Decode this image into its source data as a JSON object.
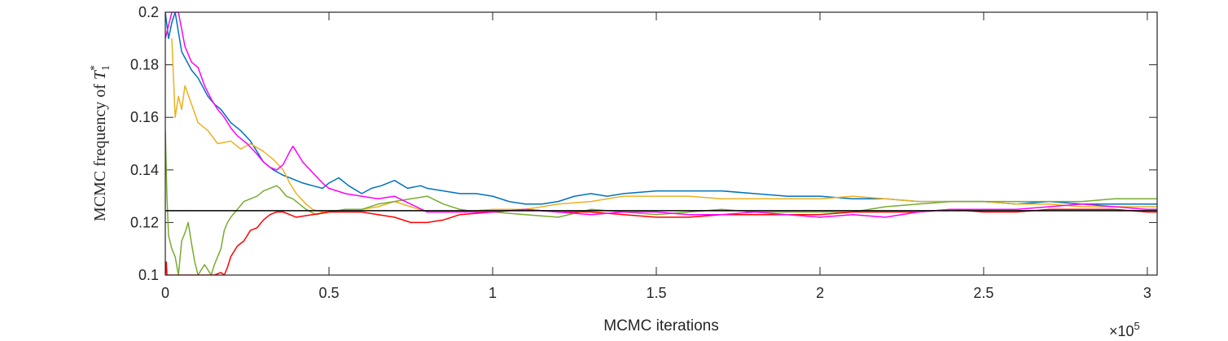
{
  "chart_data": {
    "type": "line",
    "xlabel": "MCMC iterations",
    "ylabel_prefix": "MCMC frequency of ",
    "ylabel_symbol": "T",
    "ylabel_sub": "1",
    "ylabel_sup": "*",
    "x_exponent_base": "×10",
    "x_exponent_power": "5",
    "xlim": [
      0,
      3.03
    ],
    "ylim": [
      0.1,
      0.2
    ],
    "x_ticks": [
      0,
      0.5,
      1,
      1.5,
      2,
      2.5,
      3
    ],
    "x_tick_labels": [
      "0",
      "0.5",
      "1",
      "1.5",
      "2",
      "2.5",
      "3"
    ],
    "y_ticks": [
      0.1,
      0.12,
      0.14,
      0.16,
      0.18,
      0.2
    ],
    "y_tick_labels": [
      "0.1",
      "0.12",
      "0.14",
      "0.16",
      "0.18",
      "0.2"
    ],
    "reference_line": {
      "y": 0.1245,
      "color": "#000000"
    },
    "series": [
      {
        "color": "#0072BD",
        "points": [
          [
            0,
            0.2
          ],
          [
            0.01,
            0.19
          ],
          [
            0.02,
            0.196
          ],
          [
            0.03,
            0.2
          ],
          [
            0.05,
            0.185
          ],
          [
            0.08,
            0.178
          ],
          [
            0.1,
            0.175
          ],
          [
            0.13,
            0.168
          ],
          [
            0.15,
            0.165
          ],
          [
            0.17,
            0.163
          ],
          [
            0.2,
            0.158
          ],
          [
            0.23,
            0.155
          ],
          [
            0.26,
            0.151
          ],
          [
            0.28,
            0.147
          ],
          [
            0.3,
            0.143
          ],
          [
            0.33,
            0.14
          ],
          [
            0.36,
            0.138
          ],
          [
            0.38,
            0.137
          ],
          [
            0.4,
            0.136
          ],
          [
            0.42,
            0.135
          ],
          [
            0.45,
            0.134
          ],
          [
            0.48,
            0.133
          ],
          [
            0.5,
            0.135
          ],
          [
            0.53,
            0.137
          ],
          [
            0.56,
            0.134
          ],
          [
            0.6,
            0.131
          ],
          [
            0.63,
            0.133
          ],
          [
            0.66,
            0.134
          ],
          [
            0.7,
            0.136
          ],
          [
            0.74,
            0.133
          ],
          [
            0.78,
            0.134
          ],
          [
            0.8,
            0.133
          ],
          [
            0.85,
            0.132
          ],
          [
            0.9,
            0.131
          ],
          [
            0.95,
            0.131
          ],
          [
            1.0,
            0.13
          ],
          [
            1.05,
            0.128
          ],
          [
            1.1,
            0.127
          ],
          [
            1.15,
            0.127
          ],
          [
            1.2,
            0.128
          ],
          [
            1.25,
            0.13
          ],
          [
            1.3,
            0.131
          ],
          [
            1.35,
            0.13
          ],
          [
            1.4,
            0.131
          ],
          [
            1.5,
            0.132
          ],
          [
            1.6,
            0.132
          ],
          [
            1.7,
            0.132
          ],
          [
            1.8,
            0.131
          ],
          [
            1.9,
            0.13
          ],
          [
            2.0,
            0.13
          ],
          [
            2.1,
            0.129
          ],
          [
            2.2,
            0.129
          ],
          [
            2.3,
            0.128
          ],
          [
            2.4,
            0.128
          ],
          [
            2.5,
            0.128
          ],
          [
            2.6,
            0.127
          ],
          [
            2.7,
            0.128
          ],
          [
            2.8,
            0.127
          ],
          [
            2.9,
            0.127
          ],
          [
            3.0,
            0.127
          ],
          [
            3.03,
            0.127
          ]
        ]
      },
      {
        "color": "#EDB120",
        "points": [
          [
            0.02,
            0.19
          ],
          [
            0.03,
            0.16
          ],
          [
            0.04,
            0.168
          ],
          [
            0.05,
            0.163
          ],
          [
            0.06,
            0.172
          ],
          [
            0.08,
            0.165
          ],
          [
            0.1,
            0.158
          ],
          [
            0.13,
            0.155
          ],
          [
            0.16,
            0.15
          ],
          [
            0.2,
            0.151
          ],
          [
            0.23,
            0.148
          ],
          [
            0.26,
            0.15
          ],
          [
            0.3,
            0.147
          ],
          [
            0.33,
            0.144
          ],
          [
            0.36,
            0.14
          ],
          [
            0.38,
            0.135
          ],
          [
            0.4,
            0.131
          ],
          [
            0.43,
            0.127
          ],
          [
            0.45,
            0.125
          ],
          [
            0.48,
            0.124
          ],
          [
            0.5,
            0.124
          ],
          [
            0.55,
            0.125
          ],
          [
            0.6,
            0.125
          ],
          [
            0.65,
            0.126
          ],
          [
            0.7,
            0.128
          ],
          [
            0.75,
            0.126
          ],
          [
            0.8,
            0.124
          ],
          [
            0.9,
            0.124
          ],
          [
            1.0,
            0.125
          ],
          [
            1.1,
            0.125
          ],
          [
            1.2,
            0.127
          ],
          [
            1.3,
            0.128
          ],
          [
            1.4,
            0.13
          ],
          [
            1.5,
            0.13
          ],
          [
            1.6,
            0.13
          ],
          [
            1.7,
            0.129
          ],
          [
            1.8,
            0.129
          ],
          [
            1.9,
            0.129
          ],
          [
            2.0,
            0.129
          ],
          [
            2.1,
            0.13
          ],
          [
            2.2,
            0.129
          ],
          [
            2.3,
            0.128
          ],
          [
            2.4,
            0.128
          ],
          [
            2.5,
            0.128
          ],
          [
            2.6,
            0.127
          ],
          [
            2.7,
            0.127
          ],
          [
            2.8,
            0.126
          ],
          [
            2.9,
            0.126
          ],
          [
            3.0,
            0.126
          ],
          [
            3.03,
            0.126
          ]
        ]
      },
      {
        "color": "#77AC30",
        "points": [
          [
            0.0,
            0.155
          ],
          [
            0.005,
            0.13
          ],
          [
            0.01,
            0.115
          ],
          [
            0.02,
            0.11
          ],
          [
            0.03,
            0.107
          ],
          [
            0.04,
            0.1
          ],
          [
            0.05,
            0.113
          ],
          [
            0.06,
            0.116
          ],
          [
            0.07,
            0.12
          ],
          [
            0.08,
            0.112
          ],
          [
            0.09,
            0.105
          ],
          [
            0.1,
            0.1
          ],
          [
            0.12,
            0.104
          ],
          [
            0.14,
            0.1
          ],
          [
            0.15,
            0.104
          ],
          [
            0.17,
            0.11
          ],
          [
            0.18,
            0.117
          ],
          [
            0.19,
            0.12
          ],
          [
            0.2,
            0.122
          ],
          [
            0.22,
            0.125
          ],
          [
            0.24,
            0.128
          ],
          [
            0.26,
            0.129
          ],
          [
            0.28,
            0.13
          ],
          [
            0.3,
            0.132
          ],
          [
            0.32,
            0.133
          ],
          [
            0.34,
            0.134
          ],
          [
            0.35,
            0.133
          ],
          [
            0.37,
            0.13
          ],
          [
            0.39,
            0.129
          ],
          [
            0.41,
            0.127
          ],
          [
            0.43,
            0.125
          ],
          [
            0.46,
            0.123
          ],
          [
            0.5,
            0.124
          ],
          [
            0.55,
            0.125
          ],
          [
            0.6,
            0.125
          ],
          [
            0.65,
            0.127
          ],
          [
            0.7,
            0.128
          ],
          [
            0.75,
            0.129
          ],
          [
            0.8,
            0.13
          ],
          [
            0.85,
            0.127
          ],
          [
            0.9,
            0.125
          ],
          [
            0.95,
            0.124
          ],
          [
            1.0,
            0.124
          ],
          [
            1.1,
            0.123
          ],
          [
            1.2,
            0.122
          ],
          [
            1.3,
            0.125
          ],
          [
            1.4,
            0.124
          ],
          [
            1.5,
            0.123
          ],
          [
            1.6,
            0.124
          ],
          [
            1.7,
            0.125
          ],
          [
            1.8,
            0.124
          ],
          [
            1.9,
            0.124
          ],
          [
            2.0,
            0.124
          ],
          [
            2.1,
            0.124
          ],
          [
            2.2,
            0.126
          ],
          [
            2.3,
            0.127
          ],
          [
            2.4,
            0.128
          ],
          [
            2.5,
            0.128
          ],
          [
            2.6,
            0.128
          ],
          [
            2.7,
            0.128
          ],
          [
            2.8,
            0.128
          ],
          [
            2.9,
            0.129
          ],
          [
            3.0,
            0.129
          ],
          [
            3.03,
            0.129
          ]
        ]
      },
      {
        "color": "#FF0000",
        "points": [
          [
            0.0,
            0.1
          ],
          [
            0.003,
            0.105
          ],
          [
            0.005,
            0.1
          ],
          [
            0.007,
            0.1
          ],
          [
            0.01,
            0.1
          ],
          [
            0.15,
            0.1
          ],
          [
            0.17,
            0.101
          ],
          [
            0.18,
            0.1
          ],
          [
            0.19,
            0.103
          ],
          [
            0.2,
            0.107
          ],
          [
            0.22,
            0.111
          ],
          [
            0.24,
            0.113
          ],
          [
            0.26,
            0.117
          ],
          [
            0.28,
            0.118
          ],
          [
            0.3,
            0.121
          ],
          [
            0.32,
            0.123
          ],
          [
            0.34,
            0.124
          ],
          [
            0.36,
            0.124
          ],
          [
            0.38,
            0.123
          ],
          [
            0.4,
            0.122
          ],
          [
            0.45,
            0.123
          ],
          [
            0.5,
            0.124
          ],
          [
            0.55,
            0.124
          ],
          [
            0.6,
            0.124
          ],
          [
            0.65,
            0.123
          ],
          [
            0.7,
            0.122
          ],
          [
            0.75,
            0.12
          ],
          [
            0.8,
            0.12
          ],
          [
            0.85,
            0.121
          ],
          [
            0.9,
            0.123
          ],
          [
            1.0,
            0.124
          ],
          [
            1.1,
            0.125
          ],
          [
            1.2,
            0.124
          ],
          [
            1.3,
            0.124
          ],
          [
            1.4,
            0.123
          ],
          [
            1.5,
            0.122
          ],
          [
            1.6,
            0.122
          ],
          [
            1.7,
            0.123
          ],
          [
            1.8,
            0.123
          ],
          [
            1.9,
            0.123
          ],
          [
            2.0,
            0.123
          ],
          [
            2.1,
            0.124
          ],
          [
            2.2,
            0.124
          ],
          [
            2.3,
            0.124
          ],
          [
            2.4,
            0.125
          ],
          [
            2.5,
            0.124
          ],
          [
            2.6,
            0.124
          ],
          [
            2.7,
            0.125
          ],
          [
            2.8,
            0.125
          ],
          [
            2.9,
            0.125
          ],
          [
            3.0,
            0.124
          ],
          [
            3.03,
            0.124
          ]
        ]
      },
      {
        "color": "#FF00FF",
        "points": [
          [
            0.0,
            0.19
          ],
          [
            0.01,
            0.195
          ],
          [
            0.02,
            0.2
          ],
          [
            0.04,
            0.2
          ],
          [
            0.06,
            0.187
          ],
          [
            0.08,
            0.181
          ],
          [
            0.1,
            0.179
          ],
          [
            0.12,
            0.172
          ],
          [
            0.14,
            0.167
          ],
          [
            0.16,
            0.163
          ],
          [
            0.18,
            0.16
          ],
          [
            0.2,
            0.156
          ],
          [
            0.22,
            0.153
          ],
          [
            0.25,
            0.15
          ],
          [
            0.28,
            0.146
          ],
          [
            0.3,
            0.143
          ],
          [
            0.32,
            0.141
          ],
          [
            0.34,
            0.14
          ],
          [
            0.36,
            0.142
          ],
          [
            0.38,
            0.147
          ],
          [
            0.39,
            0.149
          ],
          [
            0.4,
            0.147
          ],
          [
            0.42,
            0.143
          ],
          [
            0.45,
            0.139
          ],
          [
            0.48,
            0.135
          ],
          [
            0.5,
            0.133
          ],
          [
            0.55,
            0.131
          ],
          [
            0.6,
            0.13
          ],
          [
            0.65,
            0.129
          ],
          [
            0.7,
            0.13
          ],
          [
            0.75,
            0.127
          ],
          [
            0.8,
            0.124
          ],
          [
            0.9,
            0.124
          ],
          [
            1.0,
            0.124
          ],
          [
            1.1,
            0.125
          ],
          [
            1.2,
            0.124
          ],
          [
            1.3,
            0.123
          ],
          [
            1.4,
            0.124
          ],
          [
            1.5,
            0.124
          ],
          [
            1.6,
            0.123
          ],
          [
            1.7,
            0.123
          ],
          [
            1.8,
            0.124
          ],
          [
            1.9,
            0.123
          ],
          [
            2.0,
            0.122
          ],
          [
            2.1,
            0.123
          ],
          [
            2.2,
            0.122
          ],
          [
            2.3,
            0.124
          ],
          [
            2.4,
            0.125
          ],
          [
            2.5,
            0.125
          ],
          [
            2.6,
            0.125
          ],
          [
            2.7,
            0.126
          ],
          [
            2.8,
            0.127
          ],
          [
            2.9,
            0.126
          ],
          [
            3.0,
            0.125
          ],
          [
            3.03,
            0.125
          ]
        ]
      }
    ]
  }
}
